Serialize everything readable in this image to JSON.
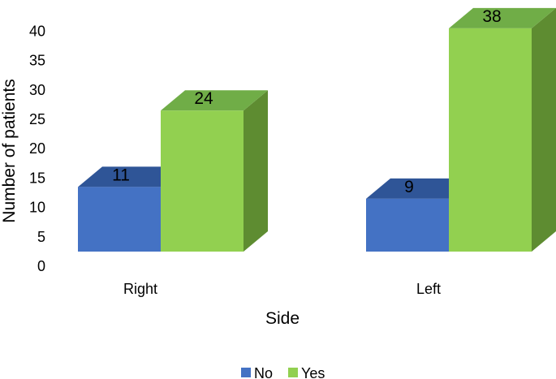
{
  "chart_data": {
    "type": "bar",
    "categories": [
      "Right",
      "Left"
    ],
    "series": [
      {
        "name": "No",
        "values": [
          11,
          9
        ]
      },
      {
        "name": "Yes",
        "values": [
          24,
          38
        ]
      }
    ],
    "data_labels": [
      [
        "11",
        "9"
      ],
      [
        "24",
        "38"
      ]
    ],
    "xlabel": "Side",
    "ylabel": "Number of patients",
    "ylim": [
      0,
      40
    ],
    "yticks": [
      "0",
      "5",
      "10",
      "15",
      "20",
      "25",
      "30",
      "35",
      "40"
    ],
    "grid": false,
    "legend_position": "bottom",
    "style": "3d-clustered-column",
    "colors": {
      "No": {
        "front": "#4472C4",
        "top": "#2F5597",
        "side": "#2F5597"
      },
      "Yes": {
        "front": "#92D050",
        "top": "#70AD47",
        "side": "#5E8C31"
      }
    }
  }
}
